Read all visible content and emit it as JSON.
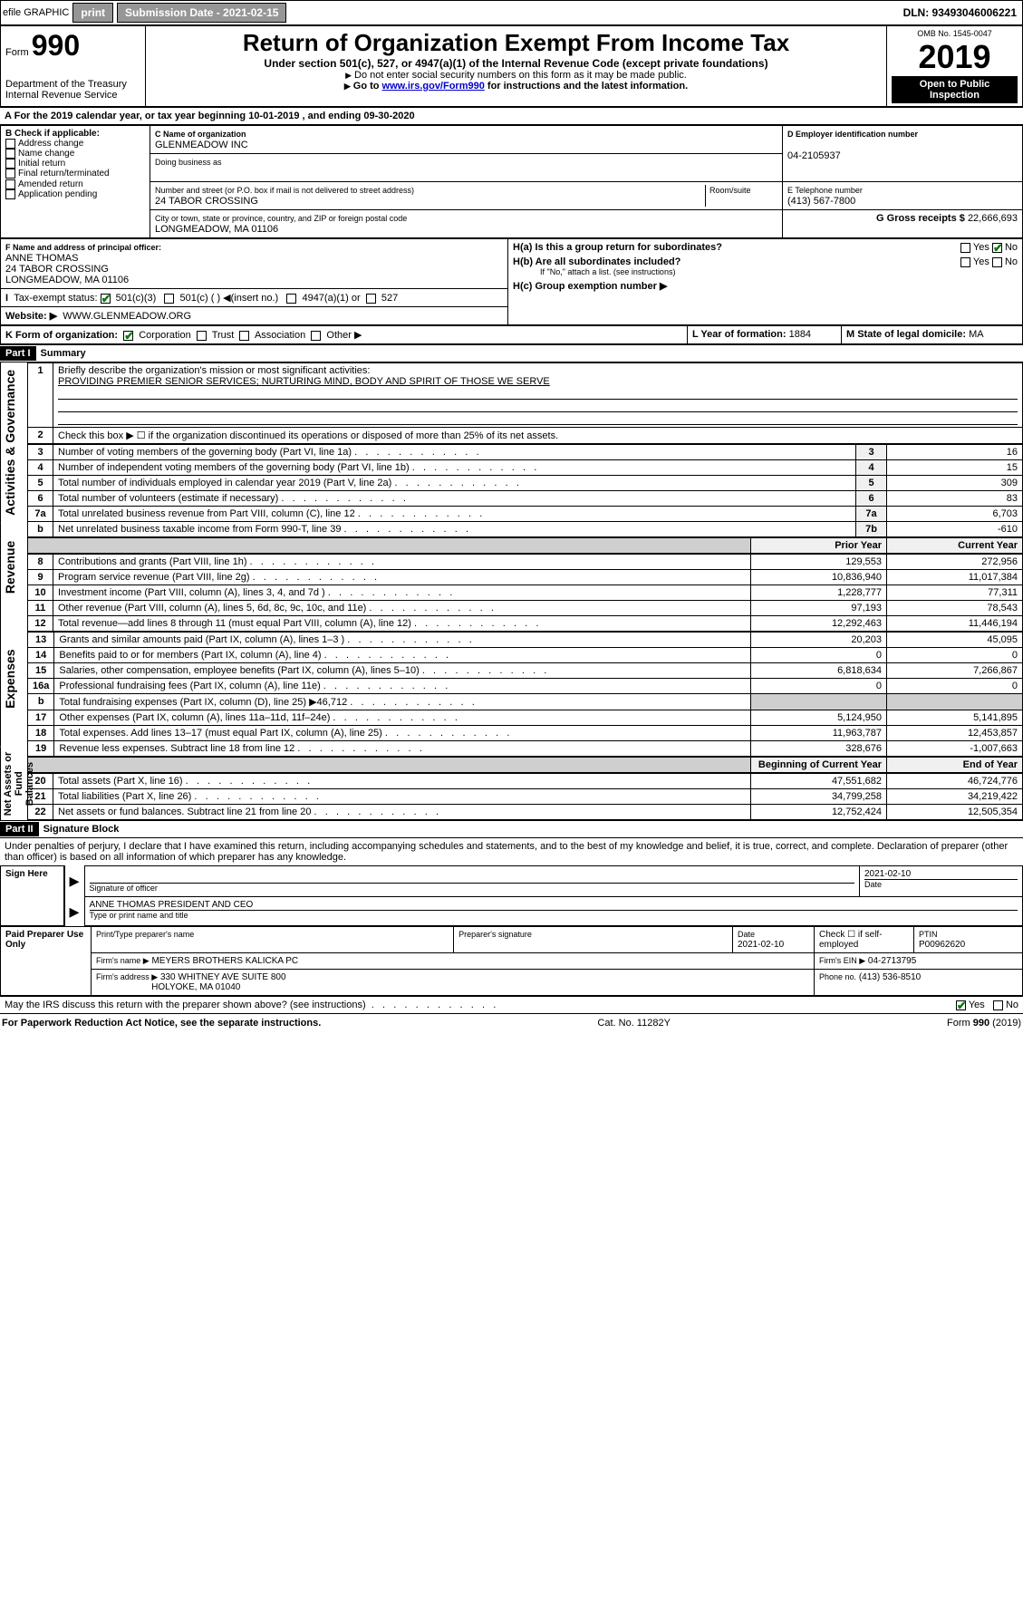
{
  "top": {
    "efile": "efile GRAPHIC",
    "print": "print",
    "subdate_label": "Submission Date - 2021-02-15",
    "dln_label": "DLN: 93493046006221"
  },
  "header": {
    "form_label": "Form",
    "form_no": "990",
    "dept": "Department of the Treasury\nInternal Revenue Service",
    "title": "Return of Organization Exempt From Income Tax",
    "subtitle": "Under section 501(c), 527, or 4947(a)(1) of the Internal Revenue Code (except private foundations)",
    "note1": "Do not enter social security numbers on this form as it may be made public.",
    "note2_pre": "Go to ",
    "note2_link": "www.irs.gov/Form990",
    "note2_post": " for instructions and the latest information.",
    "omb": "OMB No. 1545-0047",
    "year": "2019",
    "open": "Open to Public Inspection"
  },
  "lineA": "For the 2019 calendar year, or tax year beginning 10-01-2019   , and ending 09-30-2020",
  "boxB": {
    "lbl": "B Check if applicable:",
    "o1": "Address change",
    "o2": "Name change",
    "o3": "Initial return",
    "o4": "Final return/terminated",
    "o5": "Amended return",
    "o6": "Application pending"
  },
  "boxC": {
    "name_lbl": "C Name of organization",
    "name": "GLENMEADOW INC",
    "dba_lbl": "Doing business as",
    "addr_lbl": "Number and street (or P.O. box if mail is not delivered to street address)",
    "addr": "24 TABOR CROSSING",
    "room_lbl": "Room/suite",
    "city_lbl": "City or town, state or province, country, and ZIP or foreign postal code",
    "city": "LONGMEADOW, MA  01106"
  },
  "boxD": {
    "lbl": "D Employer identification number",
    "val": "04-2105937"
  },
  "boxE": {
    "lbl": "E Telephone number",
    "val": "(413) 567-7800"
  },
  "boxG": {
    "lbl": "G Gross receipts $",
    "val": "22,666,693"
  },
  "boxF": {
    "lbl": "F Name and address of principal officer:",
    "name": "ANNE THOMAS",
    "addr": "24 TABOR CROSSING",
    "city": "LONGMEADOW, MA  01106"
  },
  "boxH": {
    "a": "H(a)  Is this a group return for subordinates?",
    "b": "H(b)  Are all subordinates included?",
    "bnote": "If \"No,\" attach a list. (see instructions)",
    "c": "H(c)  Group exemption number ▶",
    "yes": "Yes",
    "no": "No"
  },
  "boxI": {
    "lbl": "Tax-exempt status:",
    "o1": "501(c)(3)",
    "o2": "501(c) (  ) ◀(insert no.)",
    "o3": "4947(a)(1) or",
    "o4": "527"
  },
  "boxJ": {
    "lbl": "Website: ▶",
    "val": "WWW.GLENMEADOW.ORG"
  },
  "boxK": {
    "lbl": "K Form of organization:",
    "o1": "Corporation",
    "o2": "Trust",
    "o3": "Association",
    "o4": "Other ▶"
  },
  "boxL": {
    "lbl": "L Year of formation:",
    "val": "1884"
  },
  "boxM": {
    "lbl": "M State of legal domicile:",
    "val": "MA"
  },
  "partI": {
    "hdr": "Part I",
    "title": "Summary",
    "side1": "Activities & Governance",
    "side2": "Revenue",
    "side3": "Expenses",
    "side4": "Net Assets or Fund Balances",
    "l1lbl": "Briefly describe the organization's mission or most significant activities:",
    "l1val": "PROVIDING PREMIER SENIOR SERVICES; NURTURING MIND, BODY AND SPIRIT OF THOSE WE SERVE",
    "l2": "Check this box ▶ ☐ if the organization discontinued its operations or disposed of more than 25% of its net assets.",
    "rows_gov": [
      {
        "n": "3",
        "lbl": "Number of voting members of the governing body (Part VI, line 1a)",
        "idx": "3",
        "v": "16"
      },
      {
        "n": "4",
        "lbl": "Number of independent voting members of the governing body (Part VI, line 1b)",
        "idx": "4",
        "v": "15"
      },
      {
        "n": "5",
        "lbl": "Total number of individuals employed in calendar year 2019 (Part V, line 2a)",
        "idx": "5",
        "v": "309"
      },
      {
        "n": "6",
        "lbl": "Total number of volunteers (estimate if necessary)",
        "idx": "6",
        "v": "83"
      },
      {
        "n": "7a",
        "lbl": "Total unrelated business revenue from Part VIII, column (C), line 12",
        "idx": "7a",
        "v": "6,703"
      },
      {
        "n": "b",
        "lbl": "Net unrelated business taxable income from Form 990-T, line 39",
        "idx": "7b",
        "v": "-610"
      }
    ],
    "col_prior": "Prior Year",
    "col_curr": "Current Year",
    "rows_rev": [
      {
        "n": "8",
        "lbl": "Contributions and grants (Part VIII, line 1h)",
        "p": "129,553",
        "c": "272,956"
      },
      {
        "n": "9",
        "lbl": "Program service revenue (Part VIII, line 2g)",
        "p": "10,836,940",
        "c": "11,017,384"
      },
      {
        "n": "10",
        "lbl": "Investment income (Part VIII, column (A), lines 3, 4, and 7d )",
        "p": "1,228,777",
        "c": "77,311"
      },
      {
        "n": "11",
        "lbl": "Other revenue (Part VIII, column (A), lines 5, 6d, 8c, 9c, 10c, and 11e)",
        "p": "97,193",
        "c": "78,543"
      },
      {
        "n": "12",
        "lbl": "Total revenue—add lines 8 through 11 (must equal Part VIII, column (A), line 12)",
        "p": "12,292,463",
        "c": "11,446,194"
      }
    ],
    "rows_exp": [
      {
        "n": "13",
        "lbl": "Grants and similar amounts paid (Part IX, column (A), lines 1–3 )",
        "p": "20,203",
        "c": "45,095"
      },
      {
        "n": "14",
        "lbl": "Benefits paid to or for members (Part IX, column (A), line 4)",
        "p": "0",
        "c": "0"
      },
      {
        "n": "15",
        "lbl": "Salaries, other compensation, employee benefits (Part IX, column (A), lines 5–10)",
        "p": "6,818,634",
        "c": "7,266,867"
      },
      {
        "n": "16a",
        "lbl": "Professional fundraising fees (Part IX, column (A), line 11e)",
        "p": "0",
        "c": "0"
      },
      {
        "n": "b",
        "lbl": "Total fundraising expenses (Part IX, column (D), line 25) ▶46,712",
        "p": "SHADE",
        "c": "SHADE"
      },
      {
        "n": "17",
        "lbl": "Other expenses (Part IX, column (A), lines 11a–11d, 11f–24e)",
        "p": "5,124,950",
        "c": "5,141,895"
      },
      {
        "n": "18",
        "lbl": "Total expenses. Add lines 13–17 (must equal Part IX, column (A), line 25)",
        "p": "11,963,787",
        "c": "12,453,857"
      },
      {
        "n": "19",
        "lbl": "Revenue less expenses. Subtract line 18 from line 12",
        "p": "328,676",
        "c": "-1,007,663"
      }
    ],
    "col_begin": "Beginning of Current Year",
    "col_end": "End of Year",
    "rows_na": [
      {
        "n": "20",
        "lbl": "Total assets (Part X, line 16)",
        "p": "47,551,682",
        "c": "46,724,776"
      },
      {
        "n": "21",
        "lbl": "Total liabilities (Part X, line 26)",
        "p": "34,799,258",
        "c": "34,219,422"
      },
      {
        "n": "22",
        "lbl": "Net assets or fund balances. Subtract line 21 from line 20",
        "p": "12,752,424",
        "c": "12,505,354"
      }
    ]
  },
  "partII": {
    "hdr": "Part II",
    "title": "Signature Block",
    "decl": "Under penalties of perjury, I declare that I have examined this return, including accompanying schedules and statements, and to the best of my knowledge and belief, it is true, correct, and complete. Declaration of preparer (other than officer) is based on all information of which preparer has any knowledge.",
    "sign_here": "Sign Here",
    "sig_officer": "Signature of officer",
    "date": "2021-02-10",
    "date_lbl": "Date",
    "officer_name": "ANNE THOMAS PRESIDENT AND CEO",
    "type_name": "Type or print name and title",
    "paid": "Paid Preparer Use Only",
    "p_name_lbl": "Print/Type preparer's name",
    "p_sig_lbl": "Preparer's signature",
    "p_date": "2021-02-10",
    "p_check": "Check ☐ if self-employed",
    "ptin_lbl": "PTIN",
    "ptin": "P00962620",
    "firm_name_lbl": "Firm's name    ▶",
    "firm_name": "MEYERS BROTHERS KALICKA PC",
    "firm_ein_lbl": "Firm's EIN ▶",
    "firm_ein": "04-2713795",
    "firm_addr_lbl": "Firm's address ▶",
    "firm_addr": "330 WHITNEY AVE SUITE 800",
    "firm_city": "HOLYOKE, MA  01040",
    "phone_lbl": "Phone no.",
    "phone": "(413) 536-8510",
    "discuss": "May the IRS discuss this return with the preparer shown above? (see instructions)",
    "yes": "Yes",
    "no": "No"
  },
  "footer": {
    "pra": "For Paperwork Reduction Act Notice, see the separate instructions.",
    "cat": "Cat. No. 11282Y",
    "form": "Form 990 (2019)"
  }
}
